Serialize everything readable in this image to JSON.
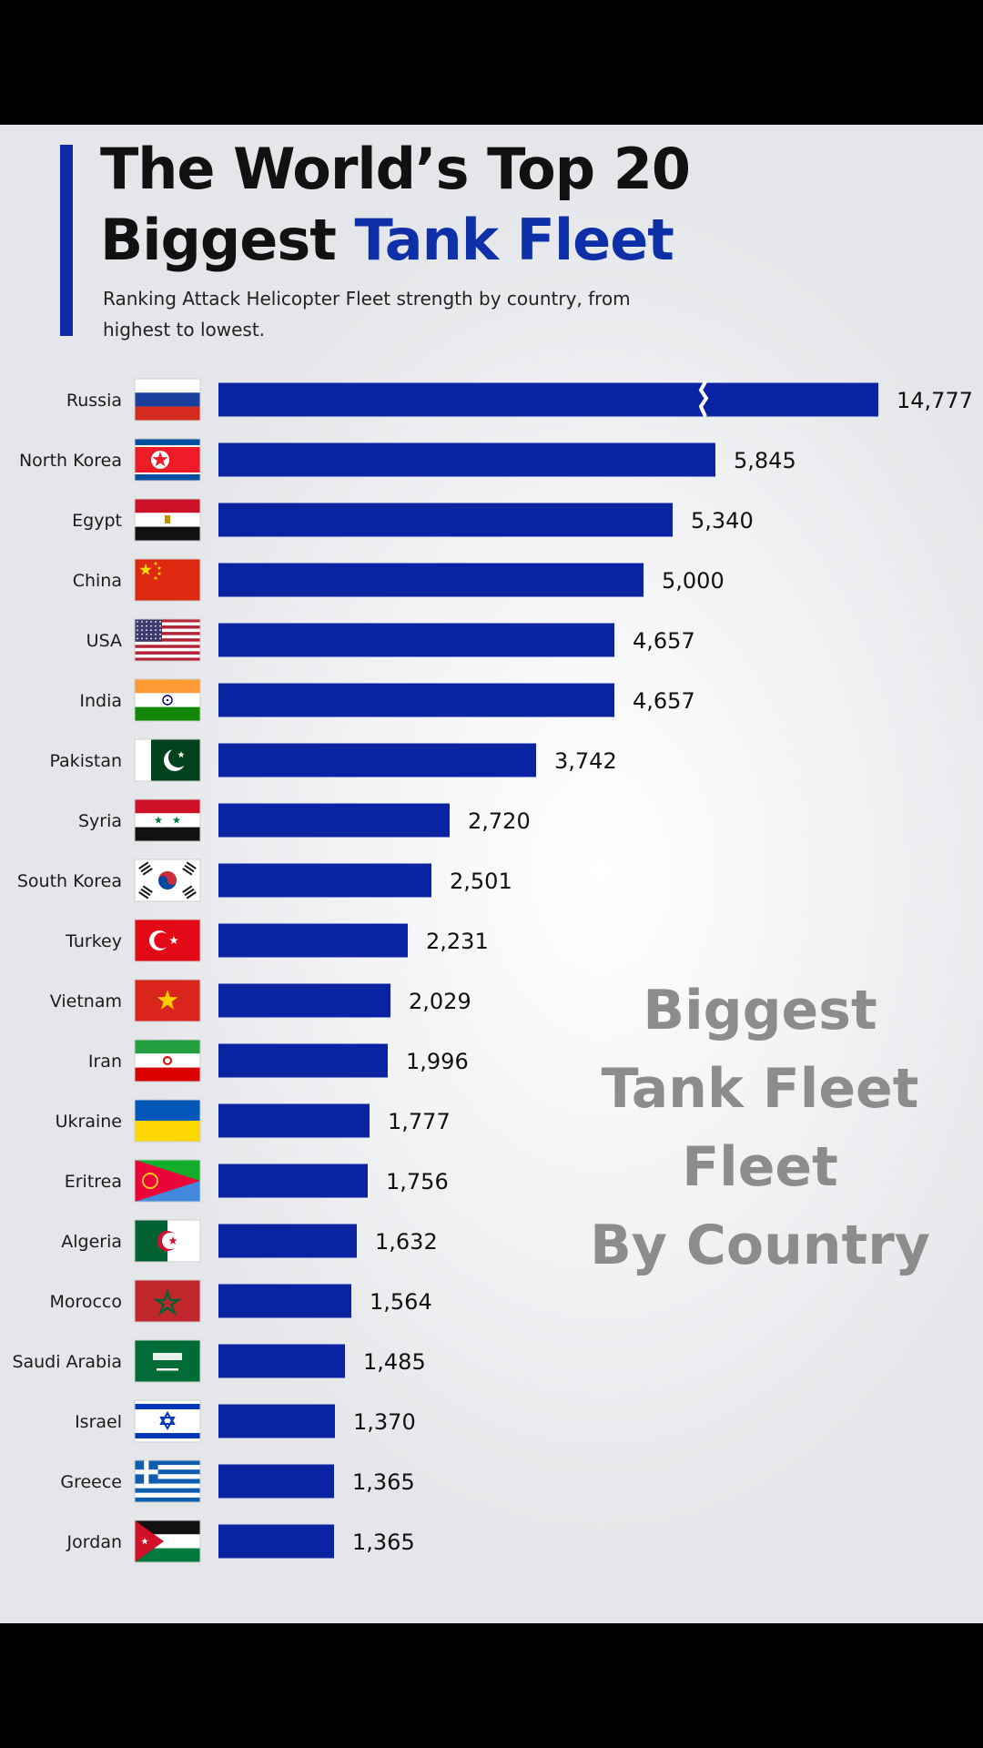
{
  "header": {
    "title_line1": "The World’s Top 20",
    "title_line2_black": "Biggest ",
    "title_line2_blue": "Tank Fleet",
    "subtitle": "Ranking Attack Helicopter Fleet strength by country, from highest to lowest."
  },
  "watermark": {
    "line1": "Biggest",
    "line2": "Tank Fleet",
    "line3": "Fleet",
    "line4": "By Country"
  },
  "colors": {
    "bar": "#0a23a3",
    "accent": "#0a2aa8",
    "title_highlight": "#0d2fa8",
    "watermark": "#8c8c8c"
  },
  "chart_data": {
    "type": "bar",
    "orientation": "horizontal",
    "title": "The World’s Top 20 Biggest Tank Fleet",
    "categories": [
      "Russia",
      "North Korea",
      "Egypt",
      "China",
      "USA",
      "India",
      "Pakistan",
      "Syria",
      "South Korea",
      "Turkey",
      "Vietnam",
      "Iran",
      "Ukraine",
      "Eritrea",
      "Algeria",
      "Morocco",
      "Saudi Arabia",
      "Israel",
      "Greece",
      "Jordan"
    ],
    "values": [
      14777,
      5845,
      5340,
      5000,
      4657,
      4657,
      3742,
      2720,
      2501,
      2231,
      2029,
      1996,
      1777,
      1756,
      1632,
      1564,
      1485,
      1370,
      1365,
      1365
    ],
    "value_labels": [
      "14,777",
      "5,845",
      "5,340",
      "5,000",
      "4,657",
      "4,657",
      "3,742",
      "2,720",
      "2,501",
      "2,231",
      "2,029",
      "1,996",
      "1,777",
      "1,756",
      "1,632",
      "1,564",
      "1,485",
      "1,370",
      "1,365",
      "1,365"
    ],
    "flags": [
      "russia-flag",
      "north-korea-flag",
      "egypt-flag",
      "china-flag",
      "usa-flag",
      "india-flag",
      "pakistan-flag",
      "syria-flag",
      "south-korea-flag",
      "turkey-flag",
      "vietnam-flag",
      "iran-flag",
      "ukraine-flag",
      "eritrea-flag",
      "algeria-flag",
      "morocco-flag",
      "saudi-arabia-flag",
      "israel-flag",
      "greece-flag",
      "jordan-flag"
    ],
    "broken_axis_first_bar": true,
    "xlim": [
      0,
      6350
    ]
  }
}
